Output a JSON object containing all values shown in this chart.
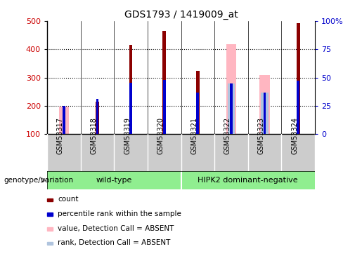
{
  "title": "GDS1793 / 1419009_at",
  "samples": [
    "GSM53317",
    "GSM53318",
    "GSM53319",
    "GSM53320",
    "GSM53321",
    "GSM53322",
    "GSM53323",
    "GSM53324"
  ],
  "count_values": [
    null,
    215,
    415,
    465,
    325,
    null,
    null,
    492
  ],
  "percentile_rank": [
    200,
    225,
    282,
    292,
    248,
    278,
    248,
    288
  ],
  "absent_value": [
    197,
    null,
    null,
    null,
    null,
    418,
    310,
    null
  ],
  "absent_rank": [
    null,
    null,
    null,
    null,
    null,
    278,
    248,
    null
  ],
  "ylim_left": [
    100,
    500
  ],
  "ylim_right": [
    0,
    100
  ],
  "yticks_left": [
    100,
    200,
    300,
    400,
    500
  ],
  "yticks_right": [
    0,
    25,
    50,
    75,
    100
  ],
  "yticklabels_right": [
    "0",
    "25",
    "50",
    "75",
    "100%"
  ],
  "count_color": "#8B0000",
  "percentile_color": "#0000CD",
  "absent_value_color": "#FFB6C1",
  "absent_rank_color": "#B0C4DE",
  "grid_color": "black",
  "xlabel_color": "#CC0000",
  "ylabel_right_color": "#0000CC",
  "group1_label": "wild-type",
  "group2_label": "HIPK2 dominant-negative",
  "group1_indices": [
    0,
    1,
    2,
    3
  ],
  "group2_indices": [
    4,
    5,
    6,
    7
  ],
  "group_color": "#90EE90",
  "label_bg_color": "#CCCCCC",
  "legend_items": [
    {
      "color": "#8B0000",
      "label": "count"
    },
    {
      "color": "#0000CD",
      "label": "percentile rank within the sample"
    },
    {
      "color": "#FFB6C1",
      "label": "value, Detection Call = ABSENT"
    },
    {
      "color": "#B0C4DE",
      "label": "rank, Detection Call = ABSENT"
    }
  ],
  "genotype_label": "genotype/variation"
}
